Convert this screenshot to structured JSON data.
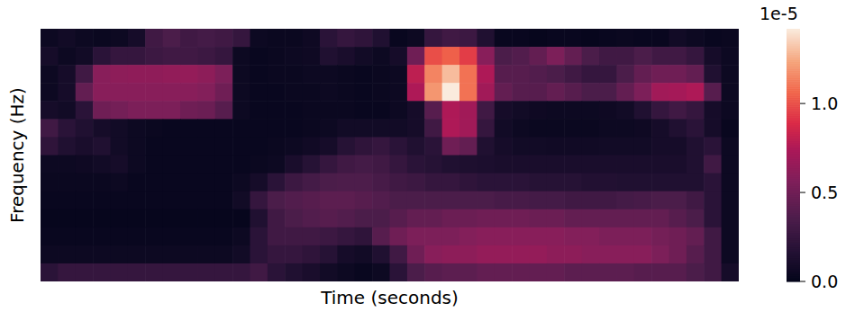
{
  "chart_data": {
    "type": "heatmap",
    "x_label": "Time (seconds)",
    "y_label": "Frequency (Hz)",
    "tick_labels": false,
    "cells": [
      [
        0.05,
        0.08,
        0.05,
        0.04,
        0.05,
        0.1,
        0.3,
        0.35,
        0.3,
        0.32,
        0.3,
        0.25,
        0.05,
        0.04,
        0.04,
        0.06,
        0.2,
        0.25,
        0.22,
        0.15,
        0.03,
        0.05,
        0.25,
        0.3,
        0.28,
        0.15,
        0.03,
        0.03,
        0.02,
        0.03,
        0.03,
        0.02,
        0.03,
        0.04,
        0.03,
        0.03,
        0.08,
        0.05,
        0.03,
        0.04
      ],
      [
        0.1,
        0.05,
        0.08,
        0.2,
        0.25,
        0.25,
        0.28,
        0.3,
        0.3,
        0.28,
        0.25,
        0.05,
        0.03,
        0.04,
        0.05,
        0.06,
        0.15,
        0.12,
        0.08,
        0.05,
        0.1,
        0.5,
        1.0,
        1.05,
        0.95,
        0.6,
        0.35,
        0.38,
        0.45,
        0.55,
        0.45,
        0.35,
        0.3,
        0.3,
        0.35,
        0.3,
        0.3,
        0.25,
        0.1,
        0.05
      ],
      [
        0.05,
        0.1,
        0.3,
        0.6,
        0.62,
        0.63,
        0.63,
        0.64,
        0.65,
        0.62,
        0.55,
        0.05,
        0.03,
        0.04,
        0.04,
        0.05,
        0.05,
        0.04,
        0.03,
        0.04,
        0.05,
        0.8,
        1.15,
        1.3,
        1.1,
        0.75,
        0.4,
        0.4,
        0.38,
        0.35,
        0.3,
        0.25,
        0.25,
        0.35,
        0.45,
        0.5,
        0.5,
        0.45,
        0.15,
        0.05
      ],
      [
        0.05,
        0.1,
        0.45,
        0.6,
        0.6,
        0.6,
        0.6,
        0.6,
        0.6,
        0.58,
        0.5,
        0.05,
        0.03,
        0.03,
        0.04,
        0.04,
        0.05,
        0.04,
        0.03,
        0.04,
        0.05,
        0.75,
        1.2,
        1.42,
        1.1,
        0.7,
        0.45,
        0.4,
        0.4,
        0.45,
        0.4,
        0.35,
        0.35,
        0.45,
        0.55,
        0.7,
        0.72,
        0.75,
        0.4,
        0.05
      ],
      [
        0.1,
        0.08,
        0.2,
        0.5,
        0.52,
        0.55,
        0.55,
        0.55,
        0.5,
        0.48,
        0.4,
        0.05,
        0.03,
        0.03,
        0.03,
        0.04,
        0.04,
        0.04,
        0.03,
        0.03,
        0.05,
        0.1,
        0.4,
        0.75,
        0.7,
        0.3,
        0.1,
        0.08,
        0.06,
        0.05,
        0.05,
        0.05,
        0.06,
        0.08,
        0.15,
        0.25,
        0.3,
        0.25,
        0.1,
        0.05
      ],
      [
        0.3,
        0.2,
        0.15,
        0.1,
        0.08,
        0.05,
        0.04,
        0.03,
        0.03,
        0.03,
        0.03,
        0.03,
        0.03,
        0.03,
        0.03,
        0.04,
        0.05,
        0.08,
        0.08,
        0.08,
        0.08,
        0.1,
        0.3,
        0.75,
        0.7,
        0.25,
        0.08,
        0.05,
        0.04,
        0.04,
        0.04,
        0.04,
        0.05,
        0.05,
        0.06,
        0.1,
        0.15,
        0.2,
        0.1,
        0.03
      ],
      [
        0.22,
        0.15,
        0.12,
        0.15,
        0.08,
        0.05,
        0.03,
        0.03,
        0.03,
        0.03,
        0.03,
        0.03,
        0.03,
        0.04,
        0.05,
        0.07,
        0.1,
        0.18,
        0.22,
        0.25,
        0.2,
        0.15,
        0.2,
        0.5,
        0.45,
        0.15,
        0.1,
        0.08,
        0.08,
        0.07,
        0.07,
        0.07,
        0.08,
        0.08,
        0.08,
        0.1,
        0.1,
        0.15,
        0.2,
        0.05
      ],
      [
        0.05,
        0.05,
        0.06,
        0.08,
        0.1,
        0.05,
        0.03,
        0.03,
        0.03,
        0.03,
        0.03,
        0.03,
        0.04,
        0.05,
        0.12,
        0.18,
        0.25,
        0.3,
        0.32,
        0.3,
        0.25,
        0.2,
        0.18,
        0.15,
        0.14,
        0.13,
        0.12,
        0.12,
        0.12,
        0.12,
        0.12,
        0.12,
        0.12,
        0.12,
        0.12,
        0.12,
        0.12,
        0.15,
        0.3,
        0.05
      ],
      [
        0.04,
        0.04,
        0.04,
        0.04,
        0.05,
        0.03,
        0.03,
        0.03,
        0.03,
        0.03,
        0.03,
        0.05,
        0.1,
        0.2,
        0.28,
        0.32,
        0.35,
        0.36,
        0.36,
        0.33,
        0.3,
        0.28,
        0.25,
        0.25,
        0.22,
        0.2,
        0.2,
        0.2,
        0.18,
        0.18,
        0.18,
        0.16,
        0.16,
        0.15,
        0.15,
        0.15,
        0.15,
        0.15,
        0.2,
        0.05
      ],
      [
        0.03,
        0.03,
        0.03,
        0.03,
        0.03,
        0.03,
        0.03,
        0.03,
        0.03,
        0.03,
        0.03,
        0.08,
        0.25,
        0.35,
        0.38,
        0.4,
        0.42,
        0.42,
        0.4,
        0.38,
        0.35,
        0.35,
        0.35,
        0.35,
        0.35,
        0.35,
        0.33,
        0.33,
        0.32,
        0.32,
        0.3,
        0.3,
        0.3,
        0.32,
        0.33,
        0.35,
        0.35,
        0.3,
        0.2,
        0.05
      ],
      [
        0.02,
        0.02,
        0.02,
        0.02,
        0.02,
        0.02,
        0.02,
        0.02,
        0.02,
        0.02,
        0.02,
        0.02,
        0.15,
        0.3,
        0.35,
        0.38,
        0.4,
        0.38,
        0.35,
        0.35,
        0.4,
        0.45,
        0.45,
        0.48,
        0.48,
        0.5,
        0.5,
        0.5,
        0.48,
        0.48,
        0.45,
        0.45,
        0.45,
        0.45,
        0.45,
        0.45,
        0.4,
        0.35,
        0.2,
        0.05
      ],
      [
        0.03,
        0.03,
        0.03,
        0.03,
        0.03,
        0.03,
        0.03,
        0.03,
        0.03,
        0.03,
        0.03,
        0.05,
        0.2,
        0.3,
        0.3,
        0.3,
        0.28,
        0.25,
        0.22,
        0.4,
        0.5,
        0.55,
        0.55,
        0.55,
        0.58,
        0.6,
        0.6,
        0.6,
        0.6,
        0.6,
        0.58,
        0.58,
        0.55,
        0.55,
        0.55,
        0.52,
        0.5,
        0.45,
        0.3,
        0.05
      ],
      [
        0.05,
        0.05,
        0.05,
        0.05,
        0.05,
        0.05,
        0.05,
        0.05,
        0.05,
        0.05,
        0.05,
        0.08,
        0.2,
        0.25,
        0.25,
        0.22,
        0.18,
        0.1,
        0.08,
        0.15,
        0.3,
        0.5,
        0.6,
        0.62,
        0.62,
        0.65,
        0.65,
        0.65,
        0.65,
        0.62,
        0.62,
        0.6,
        0.6,
        0.6,
        0.6,
        0.55,
        0.5,
        0.4,
        0.3,
        0.05
      ],
      [
        0.2,
        0.25,
        0.25,
        0.25,
        0.25,
        0.25,
        0.25,
        0.25,
        0.25,
        0.25,
        0.25,
        0.25,
        0.3,
        0.2,
        0.15,
        0.12,
        0.08,
        0.05,
        0.03,
        0.05,
        0.2,
        0.35,
        0.4,
        0.42,
        0.42,
        0.45,
        0.45,
        0.45,
        0.45,
        0.45,
        0.42,
        0.42,
        0.42,
        0.42,
        0.4,
        0.4,
        0.4,
        0.35,
        0.3,
        0.1
      ]
    ],
    "colorbar": {
      "range": [
        0,
        1.42
      ],
      "ticks": [
        {
          "value": 0,
          "label": "0.0"
        },
        0.5,
        {
          "value": 1,
          "label": "1.0"
        }
      ],
      "offset_label": "1e-5"
    }
  }
}
